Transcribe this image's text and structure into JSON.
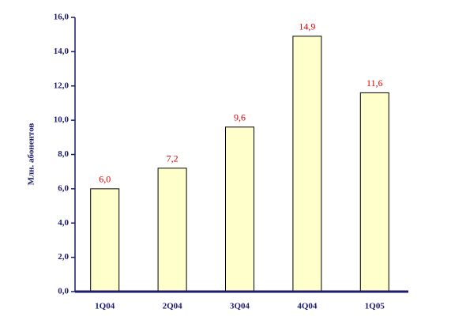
{
  "chart_data": {
    "type": "bar",
    "y_label": "Млн. абонентов",
    "categories": [
      "1Q04",
      "2Q04",
      "3Q04",
      "4Q04",
      "1Q05"
    ],
    "values": [
      6.0,
      7.2,
      9.6,
      14.9,
      11.6
    ],
    "value_labels": [
      "6,0",
      "7,2",
      "9,6",
      "14,9",
      "11,6"
    ],
    "color": "#ffffcc",
    "ylim": [
      0,
      16
    ],
    "yticks": [
      {
        "value": 0,
        "label": "0,0"
      },
      {
        "value": 2,
        "label": "2,0"
      },
      {
        "value": 4,
        "label": "4,0"
      },
      {
        "value": 6,
        "label": "6,0"
      },
      {
        "value": 8,
        "label": "8,0"
      },
      {
        "value": 10,
        "label": "10,0"
      },
      {
        "value": 12,
        "label": "12,0"
      },
      {
        "value": 14,
        "label": "14,0"
      },
      {
        "value": 16,
        "label": "16,0"
      }
    ],
    "grid": false
  }
}
